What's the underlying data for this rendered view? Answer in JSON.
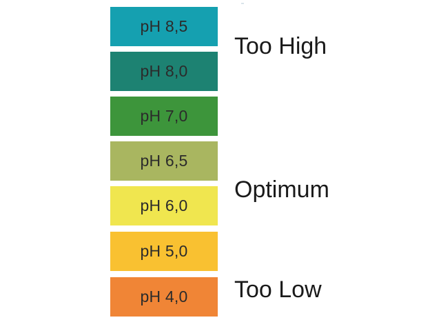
{
  "scale": {
    "swatches": [
      {
        "label": "pH 8,5",
        "color": "#15A0B0"
      },
      {
        "label": "pH 8,0",
        "color": "#1D8272"
      },
      {
        "label": "pH 7,0",
        "color": "#3D953B"
      },
      {
        "label": "pH 6,5",
        "color": "#A9B660"
      },
      {
        "label": "pH 6,0",
        "color": "#F0E64F"
      },
      {
        "label": "pH 5,0",
        "color": "#F9C131"
      },
      {
        "label": "pH 4,0",
        "color": "#F08536"
      }
    ]
  },
  "zones": {
    "high": "Too High",
    "optimum": "Optimum",
    "low": "Too Low"
  }
}
